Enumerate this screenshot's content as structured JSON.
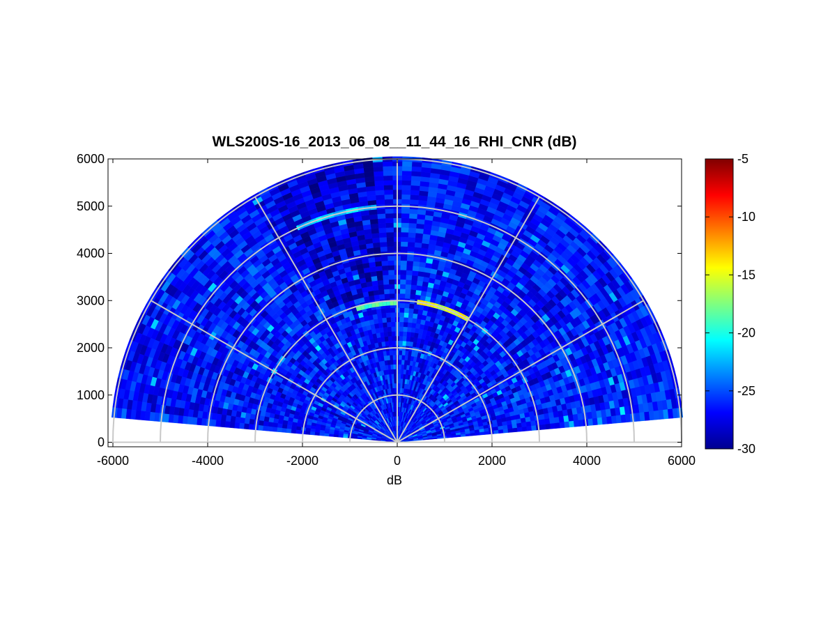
{
  "chart_data": {
    "type": "heatmap",
    "subtype": "polar-rhi",
    "title": "WLS200S-16_2013_06_08__11_44_16_RHI_CNR (dB)",
    "xlabel": "dB",
    "ylabel": "",
    "xlim": [
      -6000,
      6000
    ],
    "ylim": [
      -100,
      6000
    ],
    "x_ticks": [
      "-6000",
      "-4000",
      "-2000",
      "0",
      "2000",
      "4000",
      "6000"
    ],
    "y_ticks": [
      "0",
      "1000",
      "2000",
      "3000",
      "4000",
      "5000",
      "6000"
    ],
    "range_rings": [
      1000,
      2000,
      3000,
      4000,
      5000,
      6000
    ],
    "spoke_angles_deg": [
      0,
      30,
      60,
      90,
      120,
      150,
      180
    ],
    "scan_elevation_deg": [
      5,
      175
    ],
    "max_range": 6000,
    "colorbar": {
      "colormap": "jet",
      "limits": [
        -30,
        -5
      ],
      "tick_labels": [
        "-5",
        "-10",
        "-15",
        "-20",
        "-25",
        "-30"
      ]
    },
    "features": [
      {
        "description_range_m": 2950,
        "elevation_from_deg": 90,
        "elevation_to_deg": 107,
        "cnr_db": -19
      },
      {
        "description_range_m": 3000,
        "elevation_from_deg": 60,
        "elevation_to_deg": 82,
        "cnr_db": -15
      },
      {
        "description_range_m": 5000,
        "elevation_from_deg": 95,
        "elevation_to_deg": 115,
        "cnr_db": -22
      }
    ],
    "background_cnr_db": -26.5,
    "grid": true
  }
}
